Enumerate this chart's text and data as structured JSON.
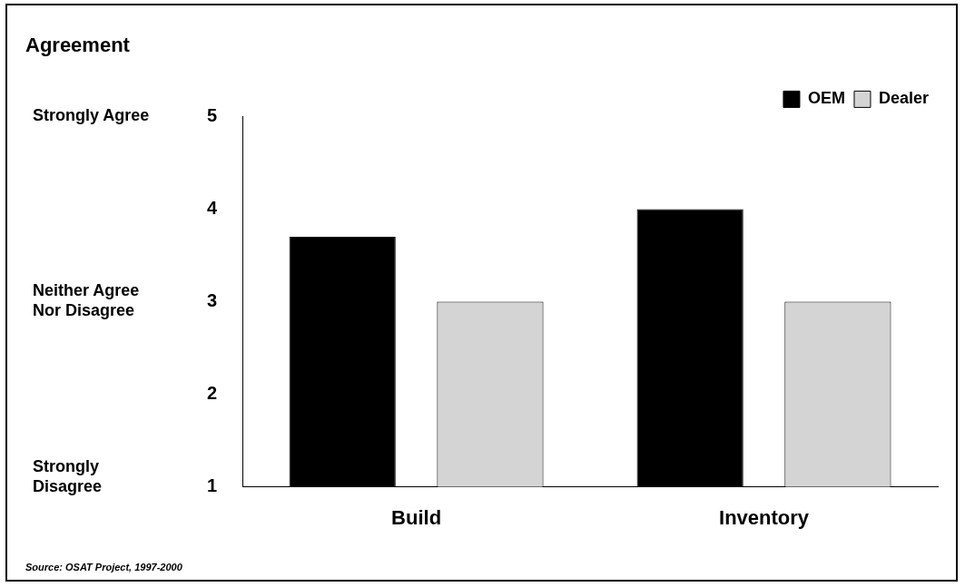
{
  "chart_data": {
    "type": "bar",
    "title": "Agreement",
    "categories": [
      "Build",
      "Inventory"
    ],
    "series": [
      {
        "name": "OEM",
        "color": "#000000",
        "values": [
          3.7,
          4.0
        ]
      },
      {
        "name": "Dealer",
        "color": "#d4d4d4",
        "values": [
          3.0,
          3.0
        ]
      }
    ],
    "ylim": [
      1,
      5
    ],
    "yticks": [
      1,
      2,
      3,
      4,
      5
    ],
    "grid": false,
    "legend": "top right",
    "annotations": [
      "Strongly Agree",
      "Neither Agree Nor Disagree",
      "Strongly Disagree",
      "Source: OSAT Project, 1997-2000"
    ]
  }
}
